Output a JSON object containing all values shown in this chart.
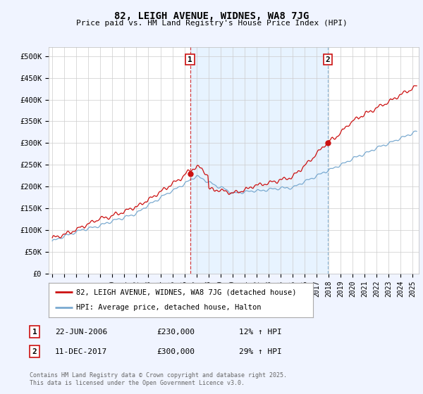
{
  "title": "82, LEIGH AVENUE, WIDNES, WA8 7JG",
  "subtitle": "Price paid vs. HM Land Registry's House Price Index (HPI)",
  "ylabel_ticks": [
    "£0",
    "£50K",
    "£100K",
    "£150K",
    "£200K",
    "£250K",
    "£300K",
    "£350K",
    "£400K",
    "£450K",
    "£500K"
  ],
  "ytick_values": [
    0,
    50000,
    100000,
    150000,
    200000,
    250000,
    300000,
    350000,
    400000,
    450000,
    500000
  ],
  "ylim": [
    0,
    520000
  ],
  "xlim_start": 1994.7,
  "xlim_end": 2025.5,
  "hpi_color": "#7aaad0",
  "price_color": "#cc1111",
  "vline1_color": "#cc1111",
  "vline2_color": "#7aaad0",
  "shade_color": "#ddeeff",
  "marker1_x": 2006.47,
  "marker1_y": 230000,
  "marker2_x": 2017.94,
  "marker2_y": 300000,
  "marker1_label": "1",
  "marker2_label": "2",
  "legend_line1": "82, LEIGH AVENUE, WIDNES, WA8 7JG (detached house)",
  "legend_line2": "HPI: Average price, detached house, Halton",
  "table_row1": [
    "1",
    "22-JUN-2006",
    "£230,000",
    "12% ↑ HPI"
  ],
  "table_row2": [
    "2",
    "11-DEC-2017",
    "£300,000",
    "29% ↑ HPI"
  ],
  "footer": "Contains HM Land Registry data © Crown copyright and database right 2025.\nThis data is licensed under the Open Government Licence v3.0.",
  "background_color": "#f0f4ff",
  "plot_bg_color": "#ffffff",
  "grid_color": "#cccccc"
}
